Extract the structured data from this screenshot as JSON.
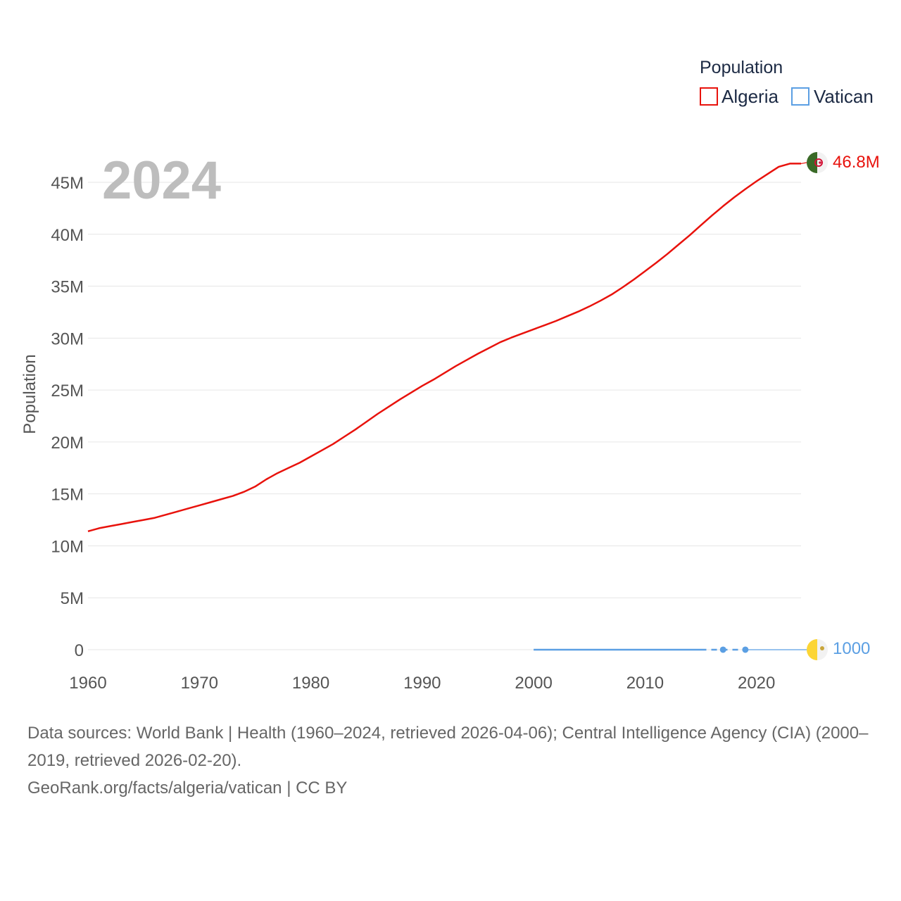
{
  "chart_data": {
    "type": "line",
    "title": "2024",
    "ylabel": "Population",
    "xlabel": "",
    "xlim": [
      1960,
      2024
    ],
    "ylim": [
      0,
      45000000
    ],
    "x_ticks": [
      1960,
      1970,
      1980,
      1990,
      2000,
      2010,
      2020
    ],
    "x_tick_labels": [
      "1960",
      "1970",
      "1980",
      "1990",
      "2000",
      "2010",
      "2020"
    ],
    "y_ticks": [
      0,
      5000000,
      10000000,
      15000000,
      20000000,
      25000000,
      30000000,
      35000000,
      40000000,
      45000000
    ],
    "y_tick_labels": [
      "0",
      "5M",
      "10M",
      "15M",
      "20M",
      "25M",
      "30M",
      "35M",
      "40M",
      "45M"
    ],
    "grid": true,
    "legend": {
      "title": "Population",
      "position": "top-right",
      "items": [
        {
          "name": "Algeria",
          "color": "#e8120c"
        },
        {
          "name": "Vatican",
          "color": "#5b9fe3"
        }
      ]
    },
    "series": [
      {
        "name": "Algeria",
        "color": "#e8120c",
        "end_label": "46.8M",
        "x": [
          1960,
          1961,
          1962,
          1963,
          1964,
          1965,
          1966,
          1967,
          1968,
          1969,
          1970,
          1971,
          1972,
          1973,
          1974,
          1975,
          1976,
          1977,
          1978,
          1979,
          1980,
          1981,
          1982,
          1983,
          1984,
          1985,
          1986,
          1987,
          1988,
          1989,
          1990,
          1991,
          1992,
          1993,
          1994,
          1995,
          1996,
          1997,
          1998,
          1999,
          2000,
          2001,
          2002,
          2003,
          2004,
          2005,
          2006,
          2007,
          2008,
          2009,
          2010,
          2011,
          2012,
          2013,
          2014,
          2015,
          2016,
          2017,
          2018,
          2019,
          2020,
          2021,
          2022,
          2023,
          2024
        ],
        "values": [
          11400000,
          11700000,
          11900000,
          12100000,
          12300000,
          12500000,
          12700000,
          13000000,
          13300000,
          13600000,
          13900000,
          14200000,
          14500000,
          14800000,
          15200000,
          15700000,
          16400000,
          17000000,
          17500000,
          18000000,
          18600000,
          19200000,
          19800000,
          20500000,
          21200000,
          21950000,
          22700000,
          23400000,
          24100000,
          24750000,
          25400000,
          26000000,
          26650000,
          27300000,
          27900000,
          28500000,
          29050000,
          29600000,
          30050000,
          30450000,
          30850000,
          31250000,
          31650000,
          32100000,
          32550000,
          33050000,
          33600000,
          34200000,
          34900000,
          35650000,
          36450000,
          37250000,
          38100000,
          39000000,
          39900000,
          40850000,
          41800000,
          42700000,
          43550000,
          44350000,
          45100000,
          45800000,
          46500000,
          46800000,
          46800000
        ]
      },
      {
        "name": "Vatican",
        "color": "#5b9fe3",
        "end_label": "1000",
        "x": [
          2000,
          2001,
          2002,
          2003,
          2004,
          2005,
          2006,
          2007,
          2008,
          2009,
          2010,
          2011,
          2012,
          2013,
          2014,
          2015,
          2017,
          2019
        ],
        "values": [
          890,
          880,
          900,
          920,
          920,
          930,
          930,
          930,
          840,
          840,
          840,
          840,
          840,
          840,
          840,
          840,
          1000,
          1000
        ],
        "markers": [
          2017,
          2019
        ],
        "extends_to": 2024
      }
    ]
  },
  "footer": {
    "sources": "Data sources: World Bank | Health (1960–2024, retrieved 2026-04-06); Central Intelligence Agency (CIA) (2000–2019, retrieved 2026-02-20).",
    "credit": "GeoRank.org/facts/algeria/vatican | CC BY"
  },
  "colors": {
    "grid": "#e6e6e6",
    "algeria_flag_green": "#3a6a27",
    "algeria_flag_white": "#f2f2f2",
    "vatican_flag_yellow": "#fcd535",
    "vatican_flag_white": "#f2f2f2"
  }
}
